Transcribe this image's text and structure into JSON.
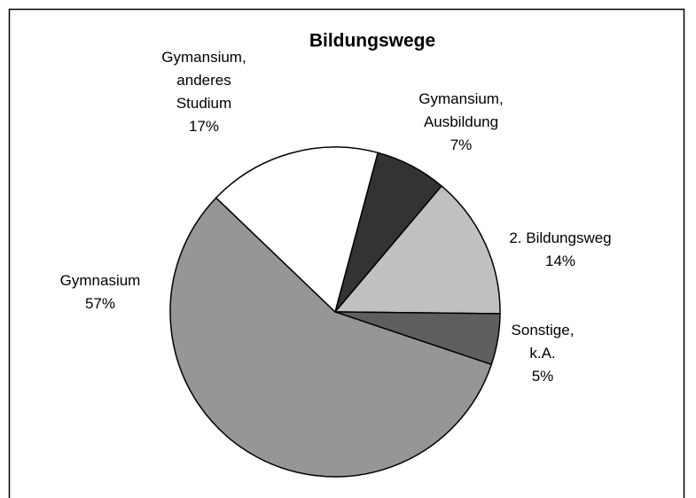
{
  "chart_data": {
    "type": "pie",
    "title": "Bildungswege",
    "categories": [
      [
        "Gymansium,",
        "Ausbildung"
      ],
      [
        "2. Bildungsweg"
      ],
      [
        "Sonstige,",
        "k.A."
      ],
      [
        "Gymnasium"
      ],
      [
        "Gymansium,",
        "anderes",
        "Studium"
      ]
    ],
    "values": [
      7,
      14,
      5,
      57,
      17
    ],
    "value_labels": [
      "7%",
      "14%",
      "5%",
      "57%",
      "17%"
    ],
    "colors": [
      "#333333",
      "#c0c0c0",
      "#5f5f5f",
      "#969696",
      "#ffffff"
    ]
  }
}
